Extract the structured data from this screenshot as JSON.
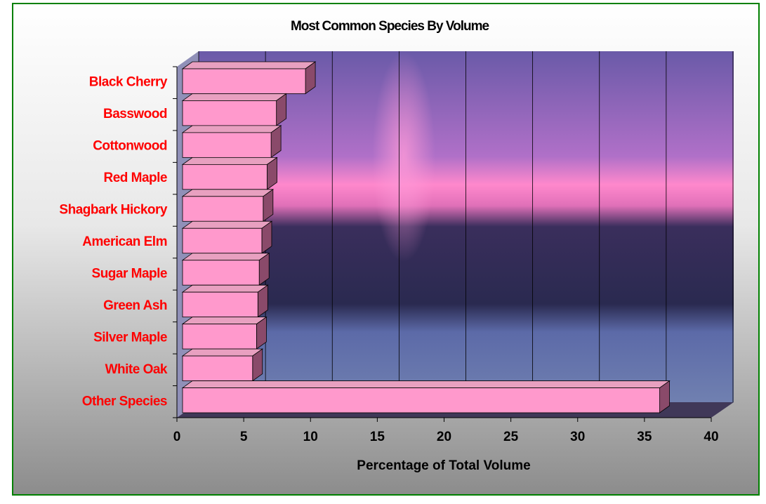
{
  "chart_data": {
    "type": "bar3d_horizontal",
    "title": "Most Common Species By Volume",
    "x_label": "Percentage of Total Volume",
    "categories": [
      "Black Cherry",
      "Basswood",
      "Cottonwood",
      "Red Maple",
      "Shagbark Hickory",
      "American Elm",
      "Sugar Maple",
      "Green Ash",
      "Silver Maple",
      "White Oak",
      "Other Species"
    ],
    "values": [
      9.3,
      7.1,
      6.7,
      6.4,
      6.1,
      6.0,
      5.8,
      5.7,
      5.6,
      5.3,
      36.1
    ],
    "color": "#ff99cc",
    "label_color": "#ff0000",
    "xlim": [
      0,
      40
    ],
    "xticks": [
      0,
      5,
      10,
      15,
      20,
      25,
      30,
      35,
      40
    ],
    "grid": true
  }
}
